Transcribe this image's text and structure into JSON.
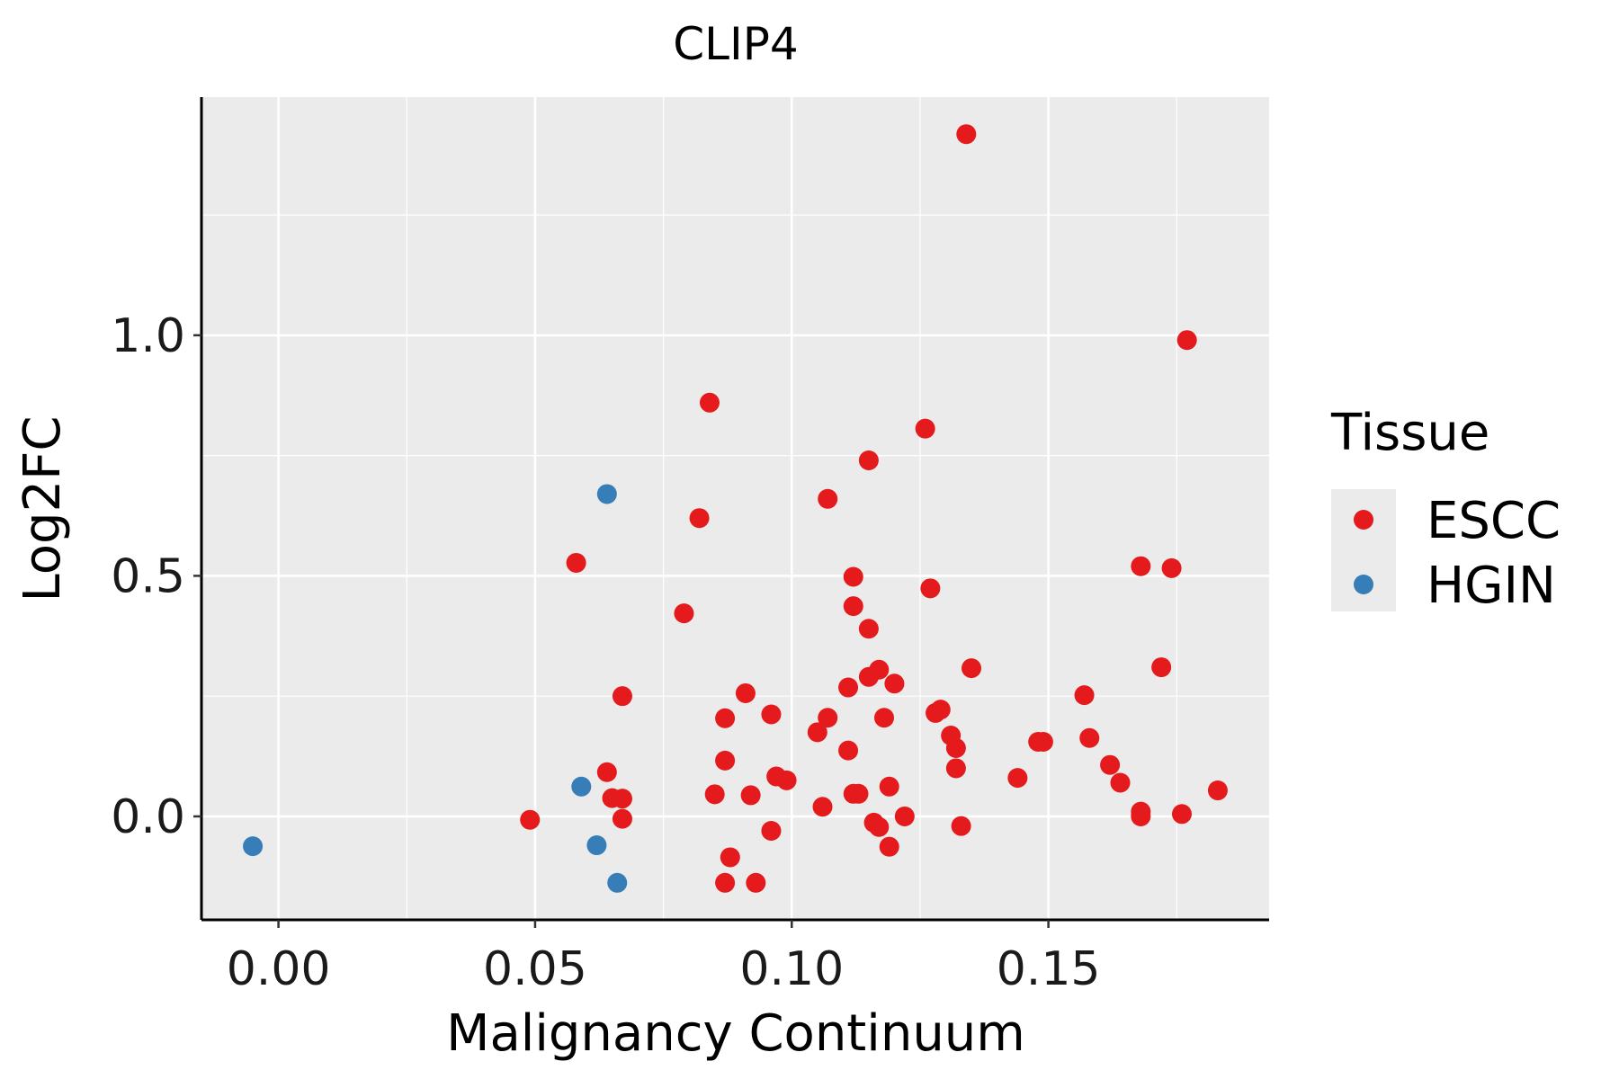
{
  "chart_data": {
    "type": "scatter",
    "title": "CLIP4",
    "xlabel": "Malignancy Continuum",
    "ylabel": "Log2FC",
    "xlim": [
      -0.015,
      0.193
    ],
    "ylim": [
      -0.215,
      1.495
    ],
    "x_ticks": [
      0.0,
      0.05,
      0.1,
      0.15
    ],
    "x_tick_labels": [
      "0.00",
      "0.05",
      "0.10",
      "0.15"
    ],
    "y_ticks": [
      0.0,
      0.5,
      1.0
    ],
    "y_tick_labels": [
      "0.0",
      "0.5",
      "1.0"
    ],
    "grid": true,
    "legend": {
      "title": "Tissue",
      "position": "right",
      "entries": [
        {
          "name": "ESCC",
          "color": "#E41A1C"
        },
        {
          "name": "HGIN",
          "color": "#377EB8"
        }
      ]
    },
    "series": [
      {
        "name": "ESCC",
        "color": "#E41A1C",
        "points": [
          [
            0.049,
            -0.007
          ],
          [
            0.058,
            0.527
          ],
          [
            0.064,
            0.092
          ],
          [
            0.065,
            0.038
          ],
          [
            0.067,
            0.25
          ],
          [
            0.067,
            0.037
          ],
          [
            0.067,
            -0.005
          ],
          [
            0.079,
            0.422
          ],
          [
            0.082,
            0.62
          ],
          [
            0.084,
            0.86
          ],
          [
            0.085,
            0.046
          ],
          [
            0.087,
            0.116
          ],
          [
            0.087,
            0.204
          ],
          [
            0.088,
            -0.085
          ],
          [
            0.087,
            -0.138
          ],
          [
            0.091,
            0.256
          ],
          [
            0.092,
            0.044
          ],
          [
            0.093,
            -0.138
          ],
          [
            0.096,
            0.212
          ],
          [
            0.096,
            -0.03
          ],
          [
            0.097,
            0.083
          ],
          [
            0.099,
            0.075
          ],
          [
            0.105,
            0.175
          ],
          [
            0.106,
            0.02
          ],
          [
            0.107,
            0.205
          ],
          [
            0.107,
            0.66
          ],
          [
            0.111,
            0.268
          ],
          [
            0.111,
            0.137
          ],
          [
            0.112,
            0.047
          ],
          [
            0.112,
            0.437
          ],
          [
            0.112,
            0.498
          ],
          [
            0.113,
            0.047
          ],
          [
            0.115,
            0.29
          ],
          [
            0.115,
            0.74
          ],
          [
            0.115,
            0.39
          ],
          [
            0.116,
            -0.013
          ],
          [
            0.117,
            0.305
          ],
          [
            0.117,
            -0.022
          ],
          [
            0.118,
            0.205
          ],
          [
            0.119,
            -0.063
          ],
          [
            0.119,
            0.062
          ],
          [
            0.12,
            0.276
          ],
          [
            0.122,
            0.0
          ],
          [
            0.126,
            0.806
          ],
          [
            0.127,
            0.474
          ],
          [
            0.128,
            0.215
          ],
          [
            0.129,
            0.222
          ],
          [
            0.131,
            0.168
          ],
          [
            0.132,
            0.142
          ],
          [
            0.132,
            0.1
          ],
          [
            0.133,
            -0.02
          ],
          [
            0.134,
            1.418
          ],
          [
            0.135,
            0.308
          ],
          [
            0.144,
            0.08
          ],
          [
            0.148,
            0.155
          ],
          [
            0.149,
            0.155
          ],
          [
            0.157,
            0.252
          ],
          [
            0.158,
            0.163
          ],
          [
            0.162,
            0.107
          ],
          [
            0.164,
            0.07
          ],
          [
            0.168,
            0.52
          ],
          [
            0.168,
            0.01
          ],
          [
            0.168,
            0.0
          ],
          [
            0.172,
            0.31
          ],
          [
            0.174,
            0.516
          ],
          [
            0.176,
            0.005
          ],
          [
            0.177,
            0.99
          ],
          [
            0.183,
            0.054
          ]
        ]
      },
      {
        "name": "HGIN",
        "color": "#377EB8",
        "points": [
          [
            -0.005,
            -0.062
          ],
          [
            0.059,
            0.062
          ],
          [
            0.062,
            -0.06
          ],
          [
            0.064,
            0.67
          ],
          [
            0.066,
            -0.138
          ]
        ]
      }
    ]
  }
}
